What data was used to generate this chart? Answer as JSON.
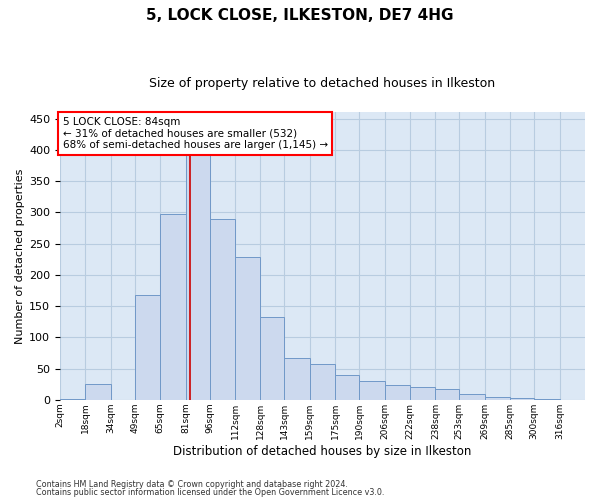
{
  "title": "5, LOCK CLOSE, ILKESTON, DE7 4HG",
  "subtitle": "Size of property relative to detached houses in Ilkeston",
  "xlabel": "Distribution of detached houses by size in Ilkeston",
  "ylabel": "Number of detached properties",
  "footnote1": "Contains HM Land Registry data © Crown copyright and database right 2024.",
  "footnote2": "Contains public sector information licensed under the Open Government Licence v3.0.",
  "annotation_title": "5 LOCK CLOSE: 84sqm",
  "annotation_line1": "← 31% of detached houses are smaller (532)",
  "annotation_line2": "68% of semi-detached houses are larger (1,145) →",
  "property_size": 84,
  "bar_color": "#ccd9ee",
  "bar_edge_color": "#7098c8",
  "red_line_color": "#cc0000",
  "bin_edges": [
    2,
    18,
    34,
    49,
    65,
    81,
    96,
    112,
    128,
    143,
    159,
    175,
    190,
    206,
    222,
    238,
    253,
    269,
    285,
    300,
    316
  ],
  "tick_labels": [
    "2sqm",
    "18sqm",
    "34sqm",
    "49sqm",
    "65sqm",
    "81sqm",
    "96sqm",
    "112sqm",
    "128sqm",
    "143sqm",
    "159sqm",
    "175sqm",
    "190sqm",
    "206sqm",
    "222sqm",
    "238sqm",
    "253sqm",
    "269sqm",
    "285sqm",
    "300sqm",
    "316sqm"
  ],
  "values": [
    2,
    25,
    0,
    167,
    298,
    430,
    290,
    228,
    133,
    67,
    57,
    40,
    30,
    23,
    20,
    17,
    9,
    5,
    3,
    1
  ],
  "ylim": [
    0,
    460
  ],
  "yticks": [
    0,
    50,
    100,
    150,
    200,
    250,
    300,
    350,
    400,
    450
  ],
  "plot_bg_color": "#dce8f5",
  "grid_color": "#b8cce0",
  "fig_bg_color": "#ffffff"
}
